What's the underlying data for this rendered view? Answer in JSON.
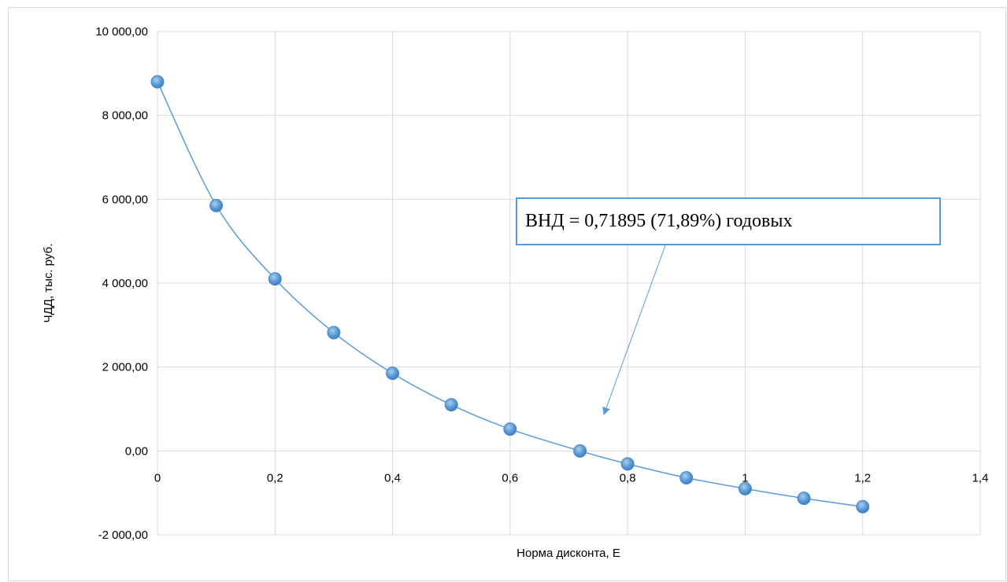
{
  "chart_data": {
    "type": "scatter",
    "xlabel": "Норма дисконта, Е",
    "ylabel": "ЧДД, тыс. руб.",
    "xlim": [
      0,
      1.4
    ],
    "ylim": [
      -2000,
      10000
    ],
    "x_ticks": [
      0,
      0.2,
      0.4,
      0.6,
      0.8,
      1,
      1.2,
      1.4
    ],
    "x_tick_labels": [
      "0",
      "0,2",
      "0,4",
      "0,6",
      "0,8",
      "1",
      "1,2",
      "1,4"
    ],
    "y_ticks": [
      -2000,
      0,
      2000,
      4000,
      6000,
      8000,
      10000
    ],
    "y_tick_labels": [
      "-2 000,00",
      "0,00",
      "2 000,00",
      "4 000,00",
      "6 000,00",
      "8 000,00",
      "10 000,00"
    ],
    "grid": true,
    "line": "smooth",
    "series": [
      {
        "x": [
          0,
          0.1,
          0.2,
          0.3,
          0.4,
          0.5,
          0.6,
          0.71895,
          0.8,
          0.9,
          1.0,
          1.1,
          1.2
        ],
        "y": [
          8800,
          5850,
          4100,
          2820,
          1850,
          1100,
          520,
          0,
          -310,
          -640,
          -900,
          -1130,
          -1330
        ]
      }
    ],
    "annotation": {
      "text": "ВНД = 0,71895 (71,89%) годовых"
    },
    "colors": {
      "line": "#5b9bd5",
      "marker": "#5b9bd5",
      "grid": "#d9d9d9",
      "annotation_border": "#5b9bd5"
    }
  }
}
